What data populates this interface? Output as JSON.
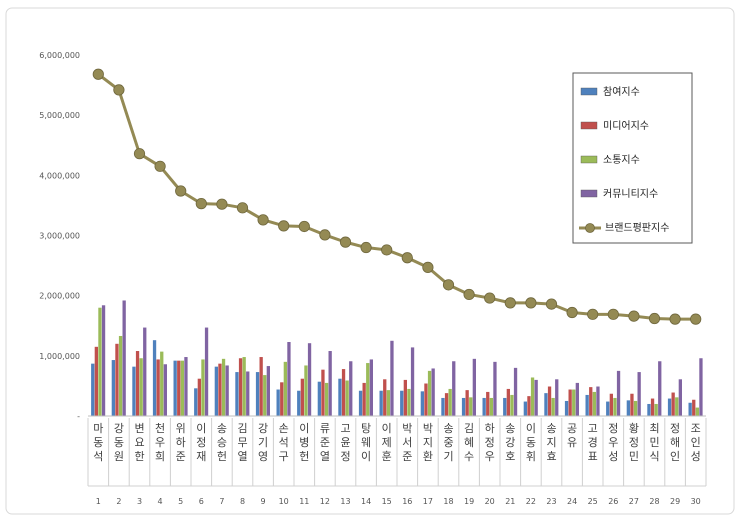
{
  "chart_data": {
    "type": "bar",
    "title": "",
    "xlabel": "",
    "ylabel": "",
    "ylim": [
      0,
      6000000
    ],
    "y_ticks": [
      "-",
      "1,000,000",
      "2,000,000",
      "3,000,000",
      "4,000,000",
      "5,000,000",
      "6,000,000"
    ],
    "grid": false,
    "legend_position": "top-right",
    "categories": [
      "마동석",
      "강동원",
      "변요한",
      "천우희",
      "위하준",
      "이정재",
      "송승헌",
      "김무열",
      "강기영",
      "손석구",
      "이병헌",
      "류준열",
      "고윤정",
      "탕웨이",
      "이제훈",
      "박서준",
      "박지환",
      "송중기",
      "김혜수",
      "하정우",
      "송강호",
      "이동휘",
      "송지효",
      "공유",
      "고경표",
      "정우성",
      "황정민",
      "최민식",
      "정해인",
      "조인성"
    ],
    "ranks": [
      "1",
      "2",
      "3",
      "4",
      "5",
      "6",
      "7",
      "8",
      "9",
      "10",
      "11",
      "12",
      "13",
      "14",
      "15",
      "16",
      "17",
      "18",
      "19",
      "20",
      "21",
      "22",
      "23",
      "24",
      "25",
      "26",
      "27",
      "28",
      "29",
      "30"
    ],
    "series": [
      {
        "name": "참여지수",
        "color": "#4f81bd",
        "values": [
          870000,
          930000,
          820000,
          1260000,
          920000,
          460000,
          820000,
          730000,
          730000,
          440000,
          420000,
          570000,
          620000,
          420000,
          420000,
          420000,
          410000,
          300000,
          300000,
          300000,
          300000,
          240000,
          380000,
          250000,
          350000,
          240000,
          260000,
          200000,
          290000,
          220000
        ]
      },
      {
        "name": "미디어지수",
        "color": "#c0504d",
        "values": [
          1150000,
          1200000,
          1080000,
          940000,
          920000,
          620000,
          870000,
          960000,
          980000,
          560000,
          620000,
          770000,
          780000,
          550000,
          610000,
          600000,
          540000,
          380000,
          430000,
          400000,
          450000,
          330000,
          490000,
          440000,
          480000,
          370000,
          370000,
          290000,
          390000,
          270000
        ]
      },
      {
        "name": "소통지수",
        "color": "#9bbb59",
        "values": [
          1800000,
          1330000,
          960000,
          1070000,
          920000,
          940000,
          950000,
          980000,
          680000,
          900000,
          840000,
          550000,
          590000,
          880000,
          430000,
          450000,
          750000,
          450000,
          310000,
          300000,
          350000,
          640000,
          300000,
          440000,
          400000,
          300000,
          250000,
          200000,
          310000,
          140000
        ]
      },
      {
        "name": "커뮤니티지수",
        "color": "#8064a2",
        "values": [
          1840000,
          1920000,
          1470000,
          860000,
          980000,
          1470000,
          840000,
          740000,
          830000,
          1230000,
          1210000,
          1080000,
          910000,
          940000,
          1250000,
          1140000,
          790000,
          910000,
          950000,
          900000,
          800000,
          600000,
          610000,
          550000,
          490000,
          750000,
          730000,
          910000,
          610000,
          960000
        ]
      }
    ],
    "line": {
      "name": "브랜드평판지수",
      "color": "#948a54",
      "values": [
        5680000,
        5420000,
        4360000,
        4150000,
        3740000,
        3530000,
        3520000,
        3460000,
        3260000,
        3160000,
        3150000,
        3010000,
        2890000,
        2800000,
        2760000,
        2630000,
        2470000,
        2180000,
        2020000,
        1960000,
        1880000,
        1880000,
        1860000,
        1720000,
        1690000,
        1690000,
        1660000,
        1620000,
        1610000,
        1610000
      ]
    }
  }
}
